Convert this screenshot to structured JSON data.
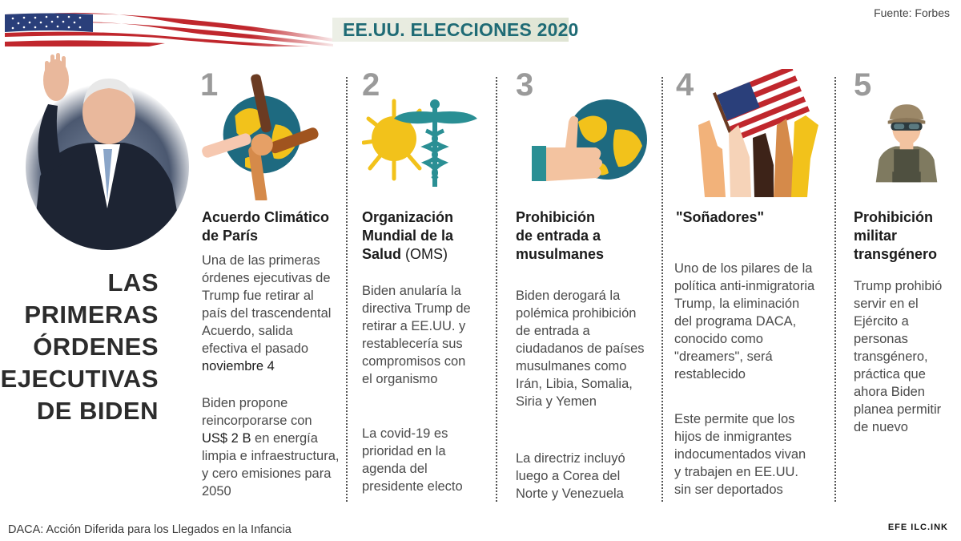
{
  "header": {
    "title": "EE.UU. ELECCIONES 2020",
    "source": "Fuente: Forbes"
  },
  "headline": {
    "lines": [
      "LAS",
      "PRIMERAS",
      "ÓRDENES",
      "EJECUTIVAS",
      "DE BIDEN"
    ]
  },
  "items": [
    {
      "number": "1",
      "icon": "globe-hands-icon",
      "title_lines": [
        "Acuerdo Climático",
        "de París"
      ],
      "para1_lines": [
        "Una de las primeras",
        "órdenes ejecutivas de",
        "Trump fue retirar al",
        "país del trascendental",
        "Acuerdo, salida",
        "efectiva el pasado"
      ],
      "para1_strong": "noviembre 4",
      "para2_l1": "Biden propone",
      "para2_l2": "reincorporarse con",
      "para2_strong": "US$ 2 B",
      "para2_l3_rest": " en energía",
      "para2_l4": "limpia e infraestructura,",
      "para2_l5": "y cero emisiones para",
      "para2_l6": "2050"
    },
    {
      "number": "2",
      "icon": "caduceus-sun-icon",
      "title_lines": [
        "Organización",
        "Mundial de la"
      ],
      "title_l3_bold": "Salud",
      "title_l3_thin": " (OMS)",
      "para1_lines": [
        "Biden anularía la",
        "directiva Trump de",
        "retirar a EE.UU. y",
        "restablecería sus",
        "compromisos con",
        "el organismo"
      ],
      "para2_lines": [
        "La covid-19 es",
        "prioridad en la",
        "agenda del",
        "presidente electo"
      ]
    },
    {
      "number": "3",
      "icon": "thumbs-up-globe-icon",
      "title_lines": [
        "Prohibición",
        "de entrada a",
        "musulmanes"
      ],
      "para1_lines": [
        "Biden derogará la",
        "polémica prohibición",
        "de entrada a",
        "ciudadanos de países",
        "musulmanes como",
        "Irán, Libia, Somalia,",
        "Siria y Yemen"
      ],
      "para2_lines": [
        "La directriz incluyó",
        "luego a Corea del",
        "Norte y Venezuela"
      ]
    },
    {
      "number": "4",
      "icon": "raised-hands-flag-icon",
      "title_lines": [
        "\"Soñadores\""
      ],
      "para1_lines": [
        "Uno de los pilares de la",
        "política anti-inmigratoria",
        "Trump, la eliminación",
        "del programa DACA,",
        "conocido como",
        "\"dreamers\", será",
        "restablecido"
      ],
      "para2_lines": [
        "Este permite que los",
        "hijos de inmigrantes",
        "indocumentados vivan",
        "y trabajen en EE.UU.",
        "sin ser deportados"
      ]
    },
    {
      "number": "5",
      "icon": "soldier-icon",
      "title_lines": [
        "Prohibición",
        "militar",
        "transgénero"
      ],
      "para1_lines": [
        "Trump prohibió",
        "servir en el",
        "Ejército a",
        "personas",
        "transgénero,",
        "práctica que",
        "ahora Biden",
        "planea permitir",
        "de nuevo"
      ]
    }
  ],
  "footer": {
    "note": "DACA: Acción Diferida para los Llegados en la Infancia",
    "logo": "EFE ILC.INK"
  },
  "colors": {
    "title": "#1f6b75",
    "number": "#9a9a9a",
    "globe_blue": "#1e6a80",
    "globe_yellow": "#f2c21b",
    "teal": "#2a8f94"
  }
}
